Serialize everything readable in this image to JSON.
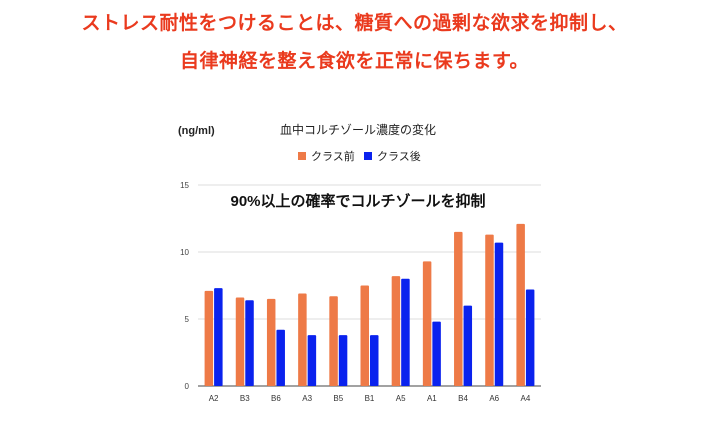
{
  "headline": {
    "line1": "ストレス耐性をつけることは、糖質への過剰な欲求を抑制し、",
    "line2": "自律神経を整え食欲を正常に保ちます。",
    "color": "#ea3a1e"
  },
  "chart_data": {
    "type": "bar",
    "title": "血中コルチゾール濃度の変化",
    "annotation": "90%以上の確率でコルチゾールを抑制",
    "ylabel": "(ng/ml)",
    "xlabel": "",
    "ylim": [
      0,
      15
    ],
    "yticks": [
      0,
      5,
      10,
      15
    ],
    "grid": true,
    "legend_position": "top",
    "categories": [
      "A2",
      "B3",
      "B6",
      "A3",
      "B5",
      "B1",
      "A5",
      "A1",
      "B4",
      "A6",
      "A4"
    ],
    "series": [
      {
        "name": "クラス前",
        "color": "#ee7a47",
        "values": [
          7.1,
          6.6,
          6.5,
          6.9,
          6.7,
          7.5,
          8.2,
          9.3,
          11.5,
          11.3,
          12.1
        ]
      },
      {
        "name": "クラス後",
        "color": "#0a22ee",
        "values": [
          7.3,
          6.4,
          4.2,
          3.8,
          3.8,
          3.8,
          8.0,
          4.8,
          6.0,
          10.7,
          7.2
        ]
      }
    ]
  }
}
